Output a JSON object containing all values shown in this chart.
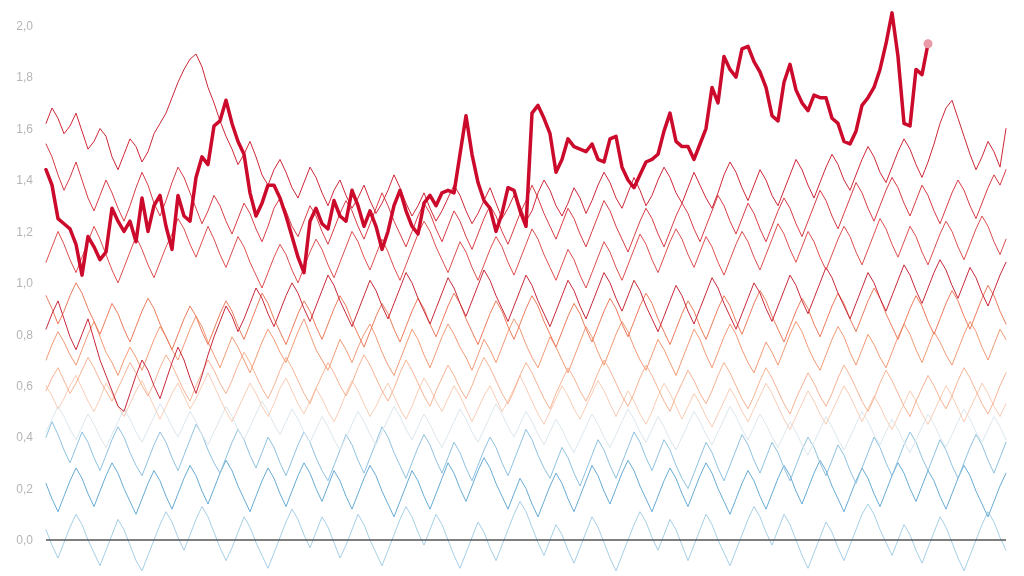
{
  "chart_data": {
    "type": "line",
    "tick_labels": "y",
    "categories": [
      null,
      null,
      null,
      null,
      null,
      null,
      null,
      null,
      null,
      null,
      null,
      null,
      null,
      null,
      null,
      null,
      null,
      null,
      null,
      null,
      null,
      null,
      null,
      null,
      null,
      null,
      null,
      null,
      null,
      null,
      null,
      null,
      null,
      null,
      null,
      null,
      null,
      null,
      null,
      null,
      null,
      null,
      null,
      null,
      null,
      null,
      null,
      null,
      null,
      null,
      null,
      null,
      null,
      null,
      null,
      null,
      null,
      null,
      null,
      null,
      null,
      null,
      null,
      null,
      null,
      null,
      null,
      null,
      null,
      null,
      null,
      null,
      null,
      null,
      null,
      null,
      null,
      null,
      null,
      null,
      null,
      null,
      null,
      null,
      null,
      null,
      null,
      null,
      null,
      null,
      null,
      null,
      null,
      null,
      null,
      null,
      null,
      null,
      null,
      null,
      null,
      null,
      null,
      null,
      null,
      null,
      null,
      null,
      null,
      null,
      null,
      null,
      null,
      null,
      null,
      null,
      null,
      null,
      null,
      null,
      null,
      null,
      null,
      null,
      null,
      null,
      null,
      null,
      null,
      null,
      null,
      null,
      null,
      null,
      null,
      null,
      null,
      null,
      null,
      null,
      null,
      null,
      null,
      null,
      null,
      null,
      null,
      null,
      null,
      null,
      null,
      null,
      null,
      null,
      null,
      null,
      null,
      null,
      null,
      null,
      null
    ],
    "ylim": [
      -0.14,
      2.1
    ],
    "yticks": [
      {
        "value": 0,
        "label": "0,0"
      },
      {
        "value": 0.2,
        "label": "0,2"
      },
      {
        "value": 0.4,
        "label": "0,4"
      },
      {
        "value": 0.6,
        "label": "0,6"
      },
      {
        "value": 0.8,
        "label": "0,8"
      },
      {
        "value": 1,
        "label": "1,0"
      },
      {
        "value": 1.2,
        "label": "1,2"
      },
      {
        "value": 1.4,
        "label": "1,4"
      },
      {
        "value": 1.6,
        "label": "1,6"
      },
      {
        "value": 1.8,
        "label": "1,8"
      },
      {
        "value": 2,
        "label": "2,0"
      }
    ],
    "ref_lines": [
      {
        "axis": "y",
        "value": 0,
        "color": "#555555"
      }
    ],
    "series": [
      {
        "color": "#a6cfe6",
        "values": [
          0.04,
          -0.02,
          -0.07,
          -0.01,
          0.05,
          0.1,
          0.06,
          0.0,
          -0.05,
          -0.1,
          -0.04,
          0.02,
          0.08,
          0.04,
          -0.02,
          -0.08,
          -0.12,
          -0.06,
          0.0,
          0.06,
          0.11,
          0.07,
          0.01,
          -0.04,
          0.02,
          0.08,
          0.13,
          0.09,
          0.03,
          -0.03,
          -0.08,
          -0.03,
          0.03,
          0.09,
          0.05,
          -0.01,
          -0.06,
          -0.11,
          -0.05,
          0.01,
          0.07,
          0.12,
          0.08,
          0.02,
          -0.03,
          0.03,
          0.09,
          0.05,
          -0.01,
          -0.07,
          -0.02,
          0.04,
          0.1,
          0.06,
          0.0,
          -0.05,
          -0.1,
          -0.04,
          0.02,
          0.08,
          0.13,
          0.09,
          0.03,
          -0.02,
          0.04,
          0.1,
          0.06,
          0.0,
          -0.06,
          -0.11,
          -0.05,
          0.01,
          0.07,
          0.03,
          -0.03,
          -0.08,
          -0.02,
          0.04,
          0.1,
          0.15,
          0.11,
          0.05,
          -0.01,
          -0.06,
          0.0,
          0.06,
          0.02,
          -0.04,
          -0.09,
          -0.03,
          0.03,
          0.09,
          0.05,
          -0.01,
          -0.07,
          -0.12,
          -0.06,
          0.0,
          0.06,
          0.11,
          0.07,
          0.01,
          -0.04,
          0.02,
          0.08,
          0.04,
          -0.02,
          -0.08,
          -0.02,
          0.04,
          0.1,
          0.06,
          0.0,
          -0.05,
          -0.1,
          -0.04,
          0.02,
          0.08,
          0.13,
          0.09,
          0.03,
          -0.02,
          0.04,
          0.1,
          0.06,
          0.0,
          -0.06,
          -0.11,
          -0.05,
          0.01,
          0.07,
          0.03,
          -0.03,
          -0.08,
          -0.02,
          0.04,
          0.1,
          0.14,
          0.1,
          0.04,
          -0.01,
          -0.06,
          0.0,
          0.06,
          0.02,
          -0.04,
          -0.09,
          -0.03,
          0.03,
          0.09,
          0.05,
          -0.01,
          -0.07,
          -0.12,
          -0.06,
          0.0,
          0.06,
          0.11,
          0.07,
          0.01,
          -0.04
        ]
      },
      {
        "color": "#67abd4",
        "values": [
          0.22,
          0.16,
          0.11,
          0.17,
          0.23,
          0.28,
          0.24,
          0.18,
          0.13,
          0.19,
          0.25,
          0.3,
          0.26,
          0.2,
          0.15,
          0.1,
          0.16,
          0.22,
          0.27,
          0.23,
          0.17,
          0.12,
          0.18,
          0.24,
          0.29,
          0.25,
          0.19,
          0.14,
          0.2,
          0.26,
          0.31,
          0.27,
          0.21,
          0.16,
          0.11,
          0.17,
          0.23,
          0.28,
          0.24,
          0.18,
          0.13,
          0.19,
          0.25,
          0.3,
          0.26,
          0.2,
          0.15,
          0.21,
          0.27,
          0.23,
          0.17,
          0.12,
          0.18,
          0.24,
          0.29,
          0.25,
          0.19,
          0.14,
          0.09,
          0.15,
          0.21,
          0.27,
          0.23,
          0.17,
          0.12,
          0.18,
          0.24,
          0.3,
          0.26,
          0.2,
          0.15,
          0.21,
          0.27,
          0.32,
          0.28,
          0.22,
          0.17,
          0.12,
          0.18,
          0.24,
          0.2,
          0.14,
          0.09,
          0.15,
          0.21,
          0.26,
          0.22,
          0.16,
          0.11,
          0.17,
          0.23,
          0.29,
          0.25,
          0.19,
          0.14,
          0.2,
          0.26,
          0.31,
          0.27,
          0.21,
          0.16,
          0.11,
          0.17,
          0.23,
          0.28,
          0.24,
          0.18,
          0.13,
          0.19,
          0.25,
          0.3,
          0.26,
          0.2,
          0.15,
          0.1,
          0.16,
          0.22,
          0.27,
          0.23,
          0.17,
          0.12,
          0.18,
          0.24,
          0.29,
          0.25,
          0.19,
          0.14,
          0.2,
          0.26,
          0.31,
          0.27,
          0.21,
          0.16,
          0.11,
          0.17,
          0.23,
          0.28,
          0.24,
          0.18,
          0.13,
          0.19,
          0.25,
          0.3,
          0.26,
          0.2,
          0.15,
          0.21,
          0.27,
          0.23,
          0.17,
          0.12,
          0.18,
          0.24,
          0.29,
          0.25,
          0.19,
          0.14,
          0.09,
          0.15,
          0.21,
          0.26
        ]
      },
      {
        "color": "#8fc2df",
        "values": [
          0.4,
          0.46,
          0.41,
          0.35,
          0.3,
          0.36,
          0.42,
          0.38,
          0.32,
          0.27,
          0.33,
          0.39,
          0.44,
          0.4,
          0.34,
          0.29,
          0.25,
          0.31,
          0.37,
          0.42,
          0.38,
          0.32,
          0.27,
          0.33,
          0.39,
          0.45,
          0.41,
          0.35,
          0.3,
          0.26,
          0.32,
          0.38,
          0.43,
          0.39,
          0.33,
          0.28,
          0.34,
          0.4,
          0.36,
          0.3,
          0.25,
          0.31,
          0.37,
          0.42,
          0.38,
          0.32,
          0.27,
          0.23,
          0.29,
          0.35,
          0.41,
          0.37,
          0.31,
          0.26,
          0.32,
          0.38,
          0.44,
          0.4,
          0.34,
          0.29,
          0.24,
          0.3,
          0.36,
          0.41,
          0.37,
          0.31,
          0.26,
          0.32,
          0.38,
          0.34,
          0.28,
          0.23,
          0.29,
          0.35,
          0.4,
          0.36,
          0.3,
          0.25,
          0.31,
          0.37,
          0.43,
          0.39,
          0.33,
          0.28,
          0.24,
          0.3,
          0.36,
          0.32,
          0.26,
          0.21,
          0.27,
          0.33,
          0.39,
          0.35,
          0.29,
          0.24,
          0.3,
          0.36,
          0.42,
          0.38,
          0.32,
          0.27,
          0.33,
          0.39,
          0.35,
          0.29,
          0.24,
          0.2,
          0.26,
          0.32,
          0.38,
          0.34,
          0.28,
          0.23,
          0.29,
          0.35,
          0.41,
          0.37,
          0.31,
          0.26,
          0.32,
          0.38,
          0.34,
          0.28,
          0.23,
          0.29,
          0.35,
          0.4,
          0.36,
          0.3,
          0.25,
          0.31,
          0.37,
          0.33,
          0.27,
          0.22,
          0.28,
          0.34,
          0.4,
          0.36,
          0.3,
          0.25,
          0.31,
          0.37,
          0.42,
          0.38,
          0.32,
          0.27,
          0.33,
          0.39,
          0.35,
          0.29,
          0.24,
          0.3,
          0.36,
          0.41,
          0.37,
          0.31,
          0.26,
          0.32,
          0.38
        ]
      },
      {
        "color": "#dce7ee",
        "values": [
          0.42,
          0.47,
          0.52,
          0.48,
          0.43,
          0.39,
          0.44,
          0.49,
          0.45,
          0.4,
          0.36,
          0.41,
          0.46,
          0.51,
          0.47,
          0.42,
          0.38,
          0.43,
          0.48,
          0.53,
          0.49,
          0.44,
          0.4,
          0.45,
          0.5,
          0.46,
          0.41,
          0.37,
          0.42,
          0.47,
          0.52,
          0.48,
          0.43,
          0.39,
          0.44,
          0.49,
          0.54,
          0.5,
          0.45,
          0.41,
          0.46,
          0.51,
          0.47,
          0.42,
          0.38,
          0.43,
          0.48,
          0.44,
          0.39,
          0.35,
          0.4,
          0.45,
          0.5,
          0.46,
          0.41,
          0.37,
          0.42,
          0.47,
          0.52,
          0.48,
          0.43,
          0.39,
          0.44,
          0.49,
          0.45,
          0.4,
          0.36,
          0.41,
          0.46,
          0.51,
          0.47,
          0.42,
          0.38,
          0.43,
          0.48,
          0.53,
          0.49,
          0.44,
          0.4,
          0.45,
          0.5,
          0.46,
          0.41,
          0.37,
          0.42,
          0.47,
          0.43,
          0.38,
          0.34,
          0.39,
          0.44,
          0.49,
          0.45,
          0.4,
          0.36,
          0.41,
          0.46,
          0.51,
          0.47,
          0.42,
          0.38,
          0.43,
          0.48,
          0.44,
          0.39,
          0.35,
          0.4,
          0.45,
          0.5,
          0.46,
          0.41,
          0.37,
          0.42,
          0.47,
          0.52,
          0.48,
          0.43,
          0.39,
          0.44,
          0.49,
          0.45,
          0.4,
          0.36,
          0.41,
          0.46,
          0.42,
          0.37,
          0.33,
          0.38,
          0.43,
          0.48,
          0.44,
          0.39,
          0.35,
          0.4,
          0.45,
          0.5,
          0.46,
          0.41,
          0.37,
          0.42,
          0.47,
          0.43,
          0.38,
          0.34,
          0.39,
          0.44,
          0.49,
          0.45,
          0.4,
          0.36,
          0.41,
          0.46,
          0.51,
          0.47,
          0.42,
          0.38,
          0.43,
          0.48,
          0.44,
          0.39
        ]
      },
      {
        "color": "#f9cdb5",
        "values": [
          0.6,
          0.56,
          0.51,
          0.55,
          0.6,
          0.64,
          0.59,
          0.54,
          0.5,
          0.55,
          0.61,
          0.57,
          0.52,
          0.48,
          0.53,
          0.58,
          0.62,
          0.57,
          0.52,
          0.47,
          0.52,
          0.57,
          0.61,
          0.56,
          0.51,
          0.55,
          0.6,
          0.65,
          0.6,
          0.55,
          0.5,
          0.46,
          0.51,
          0.56,
          0.61,
          0.57,
          0.52,
          0.48,
          0.53,
          0.59,
          0.63,
          0.58,
          0.53,
          0.49,
          0.54,
          0.59,
          0.55,
          0.5,
          0.46,
          0.51,
          0.57,
          0.62,
          0.58,
          0.53,
          0.48,
          0.52,
          0.57,
          0.61,
          0.56,
          0.51,
          0.47,
          0.52,
          0.58,
          0.63,
          0.59,
          0.54,
          0.5,
          0.55,
          0.6,
          0.56,
          0.51,
          0.46,
          0.51,
          0.56,
          0.6,
          0.55,
          0.5,
          0.54,
          0.59,
          0.64,
          0.59,
          0.54,
          0.49,
          0.45,
          0.5,
          0.55,
          0.6,
          0.56,
          0.51,
          0.47,
          0.52,
          0.57,
          0.62,
          0.58,
          0.53,
          0.48,
          0.53,
          0.58,
          0.54,
          0.49,
          0.45,
          0.5,
          0.56,
          0.61,
          0.57,
          0.52,
          0.47,
          0.52,
          0.57,
          0.53,
          0.48,
          0.44,
          0.49,
          0.54,
          0.59,
          0.55,
          0.5,
          0.46,
          0.51,
          0.56,
          0.61,
          0.57,
          0.52,
          0.47,
          0.43,
          0.48,
          0.53,
          0.58,
          0.54,
          0.49,
          0.45,
          0.5,
          0.55,
          0.6,
          0.56,
          0.51,
          0.46,
          0.51,
          0.56,
          0.52,
          0.47,
          0.43,
          0.48,
          0.53,
          0.58,
          0.54,
          0.49,
          0.45,
          0.5,
          0.55,
          0.6,
          0.56,
          0.51,
          0.46,
          0.51,
          0.56,
          0.61,
          0.57,
          0.52,
          0.48,
          0.53
        ]
      },
      {
        "color": "#f6b393",
        "values": [
          0.58,
          0.63,
          0.67,
          0.62,
          0.57,
          0.61,
          0.66,
          0.71,
          0.67,
          0.62,
          0.58,
          0.54,
          0.59,
          0.64,
          0.69,
          0.65,
          0.6,
          0.56,
          0.61,
          0.67,
          0.72,
          0.68,
          0.63,
          0.58,
          0.54,
          0.6,
          0.65,
          0.7,
          0.66,
          0.61,
          0.57,
          0.62,
          0.68,
          0.73,
          0.69,
          0.64,
          0.59,
          0.55,
          0.6,
          0.66,
          0.71,
          0.67,
          0.62,
          0.57,
          0.53,
          0.59,
          0.64,
          0.69,
          0.65,
          0.6,
          0.56,
          0.61,
          0.67,
          0.72,
          0.68,
          0.63,
          0.58,
          0.54,
          0.59,
          0.65,
          0.7,
          0.66,
          0.61,
          0.56,
          0.52,
          0.58,
          0.63,
          0.68,
          0.64,
          0.59,
          0.55,
          0.6,
          0.66,
          0.71,
          0.67,
          0.62,
          0.57,
          0.53,
          0.58,
          0.64,
          0.69,
          0.65,
          0.6,
          0.55,
          0.51,
          0.57,
          0.62,
          0.67,
          0.63,
          0.58,
          0.54,
          0.59,
          0.65,
          0.7,
          0.66,
          0.61,
          0.56,
          0.52,
          0.57,
          0.63,
          0.68,
          0.64,
          0.59,
          0.54,
          0.5,
          0.56,
          0.61,
          0.66,
          0.62,
          0.57,
          0.53,
          0.58,
          0.64,
          0.69,
          0.65,
          0.6,
          0.55,
          0.51,
          0.56,
          0.62,
          0.67,
          0.63,
          0.58,
          0.53,
          0.49,
          0.55,
          0.6,
          0.65,
          0.61,
          0.56,
          0.52,
          0.57,
          0.63,
          0.68,
          0.64,
          0.59,
          0.54,
          0.5,
          0.55,
          0.61,
          0.66,
          0.62,
          0.57,
          0.52,
          0.48,
          0.54,
          0.59,
          0.64,
          0.6,
          0.55,
          0.51,
          0.56,
          0.62,
          0.67,
          0.63,
          0.58,
          0.53,
          0.49,
          0.54,
          0.6,
          0.65
        ]
      },
      {
        "color": "#f29a74",
        "values": [
          0.7,
          0.76,
          0.81,
          0.77,
          0.72,
          0.68,
          0.74,
          0.8,
          0.85,
          0.79,
          0.73,
          0.69,
          0.64,
          0.7,
          0.75,
          0.71,
          0.66,
          0.72,
          0.78,
          0.83,
          0.79,
          0.74,
          0.7,
          0.76,
          0.82,
          0.87,
          0.83,
          0.77,
          0.72,
          0.67,
          0.73,
          0.79,
          0.75,
          0.7,
          0.65,
          0.71,
          0.77,
          0.82,
          0.78,
          0.73,
          0.69,
          0.75,
          0.81,
          0.86,
          0.8,
          0.74,
          0.7,
          0.66,
          0.72,
          0.78,
          0.74,
          0.69,
          0.75,
          0.8,
          0.84,
          0.79,
          0.73,
          0.68,
          0.64,
          0.7,
          0.76,
          0.82,
          0.78,
          0.72,
          0.67,
          0.73,
          0.79,
          0.84,
          0.8,
          0.75,
          0.71,
          0.66,
          0.72,
          0.78,
          0.74,
          0.69,
          0.75,
          0.81,
          0.86,
          0.82,
          0.76,
          0.71,
          0.67,
          0.73,
          0.79,
          0.75,
          0.7,
          0.65,
          0.71,
          0.77,
          0.83,
          0.79,
          0.73,
          0.68,
          0.74,
          0.8,
          0.85,
          0.81,
          0.75,
          0.7,
          0.66,
          0.72,
          0.78,
          0.74,
          0.69,
          0.64,
          0.7,
          0.76,
          0.82,
          0.78,
          0.72,
          0.67,
          0.73,
          0.79,
          0.84,
          0.8,
          0.74,
          0.69,
          0.65,
          0.71,
          0.77,
          0.73,
          0.68,
          0.74,
          0.8,
          0.85,
          0.81,
          0.75,
          0.7,
          0.66,
          0.72,
          0.78,
          0.83,
          0.79,
          0.73,
          0.68,
          0.74,
          0.8,
          0.76,
          0.71,
          0.67,
          0.73,
          0.79,
          0.84,
          0.8,
          0.74,
          0.69,
          0.75,
          0.81,
          0.77,
          0.72,
          0.68,
          0.74,
          0.8,
          0.85,
          0.81,
          0.75,
          0.7,
          0.76,
          0.82,
          0.78
        ]
      },
      {
        "color": "#ec7b5c",
        "values": [
          0.95,
          0.9,
          0.84,
          0.89,
          0.95,
          1.0,
          0.96,
          0.9,
          0.85,
          0.8,
          0.86,
          0.92,
          0.88,
          0.82,
          0.77,
          0.83,
          0.89,
          0.94,
          0.9,
          0.84,
          0.79,
          0.74,
          0.8,
          0.86,
          0.91,
          0.87,
          0.81,
          0.76,
          0.82,
          0.88,
          0.93,
          0.89,
          0.83,
          0.78,
          0.84,
          0.9,
          0.96,
          0.92,
          0.86,
          0.81,
          0.76,
          0.82,
          0.88,
          0.93,
          0.89,
          0.83,
          0.78,
          0.84,
          0.9,
          0.95,
          0.91,
          0.85,
          0.8,
          0.75,
          0.81,
          0.87,
          0.92,
          0.88,
          0.82,
          0.77,
          0.83,
          0.89,
          0.94,
          0.9,
          0.84,
          0.79,
          0.85,
          0.91,
          0.96,
          0.92,
          0.86,
          0.81,
          0.76,
          0.82,
          0.88,
          0.93,
          0.89,
          0.83,
          0.78,
          0.84,
          0.9,
          0.95,
          0.91,
          0.85,
          0.8,
          0.75,
          0.81,
          0.87,
          0.92,
          0.88,
          0.82,
          0.77,
          0.83,
          0.89,
          0.94,
          0.9,
          0.84,
          0.79,
          0.85,
          0.91,
          0.96,
          0.92,
          0.86,
          0.81,
          0.76,
          0.82,
          0.88,
          0.93,
          0.89,
          0.83,
          0.78,
          0.84,
          0.9,
          0.95,
          0.91,
          0.85,
          0.8,
          0.86,
          0.92,
          0.97,
          0.93,
          0.87,
          0.82,
          0.77,
          0.83,
          0.89,
          0.94,
          0.9,
          0.84,
          0.79,
          0.85,
          0.91,
          0.96,
          0.92,
          0.86,
          0.81,
          0.87,
          0.93,
          0.98,
          0.94,
          0.88,
          0.83,
          0.78,
          0.84,
          0.9,
          0.95,
          0.91,
          0.85,
          0.8,
          0.86,
          0.92,
          0.97,
          0.93,
          0.87,
          0.82,
          0.88,
          0.94,
          0.99,
          0.95,
          0.89,
          0.84
        ]
      },
      {
        "color": "#c8283a",
        "values": [
          0.82,
          0.88,
          0.93,
          0.86,
          0.79,
          0.74,
          0.8,
          0.86,
          0.78,
          0.7,
          0.64,
          0.58,
          0.52,
          0.5,
          0.57,
          0.64,
          0.7,
          0.66,
          0.6,
          0.55,
          0.62,
          0.69,
          0.75,
          0.7,
          0.63,
          0.57,
          0.64,
          0.72,
          0.79,
          0.85,
          0.91,
          0.87,
          0.81,
          0.86,
          0.92,
          0.98,
          0.94,
          0.88,
          0.83,
          0.89,
          0.95,
          1.0,
          0.96,
          0.9,
          0.85,
          0.91,
          0.97,
          1.03,
          0.99,
          0.93,
          0.88,
          0.83,
          0.89,
          0.95,
          1.01,
          0.97,
          0.91,
          0.86,
          0.92,
          0.98,
          1.04,
          1.0,
          0.94,
          0.89,
          0.84,
          0.9,
          0.96,
          1.02,
          0.98,
          0.92,
          0.87,
          0.93,
          0.99,
          1.05,
          1.01,
          0.95,
          0.9,
          0.85,
          0.91,
          0.97,
          1.03,
          0.99,
          0.93,
          0.88,
          0.83,
          0.89,
          0.95,
          1.01,
          0.97,
          0.91,
          0.86,
          0.92,
          0.98,
          1.04,
          1.0,
          0.94,
          0.89,
          0.95,
          1.01,
          0.97,
          0.91,
          0.86,
          0.81,
          0.87,
          0.93,
          0.99,
          0.95,
          0.89,
          0.84,
          0.9,
          0.96,
          1.02,
          0.98,
          0.92,
          0.87,
          0.82,
          0.88,
          0.94,
          1.0,
          0.96,
          0.9,
          0.85,
          0.91,
          0.97,
          1.03,
          0.99,
          0.93,
          0.88,
          0.94,
          1.0,
          1.06,
          1.02,
          0.96,
          0.91,
          0.86,
          0.92,
          0.98,
          1.04,
          1.0,
          0.94,
          0.89,
          0.95,
          1.01,
          1.07,
          1.03,
          0.97,
          0.92,
          0.98,
          1.04,
          1.09,
          1.05,
          0.99,
          0.94,
          1.0,
          1.06,
          1.02,
          0.96,
          0.91,
          0.97,
          1.03,
          1.08
        ]
      },
      {
        "color": "#de4d4f",
        "values": [
          1.08,
          1.14,
          1.2,
          1.15,
          1.09,
          1.04,
          1.1,
          1.16,
          1.22,
          1.17,
          1.11,
          1.05,
          1.0,
          1.06,
          1.12,
          1.18,
          1.13,
          1.07,
          1.02,
          1.08,
          1.14,
          1.19,
          1.25,
          1.21,
          1.15,
          1.1,
          1.16,
          1.22,
          1.17,
          1.11,
          1.06,
          1.12,
          1.18,
          1.14,
          1.08,
          1.03,
          0.98,
          1.04,
          1.1,
          1.15,
          1.11,
          1.05,
          1.0,
          1.06,
          1.12,
          1.17,
          1.13,
          1.07,
          1.02,
          1.08,
          1.14,
          1.2,
          1.16,
          1.1,
          1.05,
          1.11,
          1.17,
          1.12,
          1.06,
          1.01,
          1.07,
          1.13,
          1.19,
          1.24,
          1.2,
          1.14,
          1.09,
          1.04,
          1.1,
          1.16,
          1.12,
          1.06,
          1.01,
          1.07,
          1.13,
          1.18,
          1.14,
          1.08,
          1.03,
          1.09,
          1.15,
          1.21,
          1.17,
          1.11,
          1.06,
          1.01,
          1.07,
          1.13,
          1.09,
          1.03,
          0.98,
          1.04,
          1.1,
          1.16,
          1.12,
          1.06,
          1.01,
          1.07,
          1.13,
          1.19,
          1.15,
          1.09,
          1.04,
          1.1,
          1.16,
          1.21,
          1.17,
          1.11,
          1.06,
          1.12,
          1.18,
          1.14,
          1.08,
          1.03,
          1.09,
          1.15,
          1.2,
          1.16,
          1.1,
          1.05,
          1.11,
          1.17,
          1.23,
          1.19,
          1.13,
          1.08,
          1.14,
          1.2,
          1.16,
          1.1,
          1.05,
          1.11,
          1.17,
          1.22,
          1.18,
          1.12,
          1.07,
          1.13,
          1.19,
          1.25,
          1.21,
          1.15,
          1.1,
          1.16,
          1.22,
          1.18,
          1.12,
          1.07,
          1.13,
          1.19,
          1.24,
          1.2,
          1.14,
          1.09,
          1.15,
          1.21,
          1.26,
          1.22,
          1.16,
          1.11,
          1.17
        ]
      },
      {
        "color": "#d83b45",
        "values": [
          1.54,
          1.49,
          1.42,
          1.36,
          1.41,
          1.47,
          1.4,
          1.33,
          1.28,
          1.34,
          1.4,
          1.35,
          1.29,
          1.24,
          1.3,
          1.37,
          1.43,
          1.38,
          1.31,
          1.26,
          1.32,
          1.39,
          1.45,
          1.41,
          1.35,
          1.29,
          1.23,
          1.28,
          1.34,
          1.3,
          1.24,
          1.19,
          1.25,
          1.31,
          1.27,
          1.21,
          1.16,
          1.22,
          1.29,
          1.33,
          1.28,
          1.22,
          1.18,
          1.24,
          1.3,
          1.26,
          1.2,
          1.15,
          1.21,
          1.27,
          1.32,
          1.28,
          1.22,
          1.17,
          1.23,
          1.29,
          1.35,
          1.3,
          1.24,
          1.19,
          1.14,
          1.2,
          1.26,
          1.31,
          1.27,
          1.21,
          1.16,
          1.22,
          1.28,
          1.24,
          1.18,
          1.13,
          1.19,
          1.25,
          1.3,
          1.26,
          1.2,
          1.15,
          1.21,
          1.27,
          1.32,
          1.38,
          1.33,
          1.27,
          1.22,
          1.17,
          1.23,
          1.29,
          1.25,
          1.19,
          1.14,
          1.2,
          1.26,
          1.32,
          1.28,
          1.22,
          1.17,
          1.12,
          1.18,
          1.24,
          1.29,
          1.25,
          1.19,
          1.14,
          1.2,
          1.26,
          1.31,
          1.27,
          1.21,
          1.16,
          1.22,
          1.28,
          1.34,
          1.3,
          1.24,
          1.19,
          1.25,
          1.31,
          1.27,
          1.21,
          1.16,
          1.22,
          1.28,
          1.33,
          1.29,
          1.23,
          1.18,
          1.24,
          1.3,
          1.36,
          1.32,
          1.26,
          1.21,
          1.27,
          1.33,
          1.39,
          1.35,
          1.29,
          1.24,
          1.3,
          1.36,
          1.41,
          1.37,
          1.31,
          1.26,
          1.32,
          1.38,
          1.34,
          1.28,
          1.23,
          1.29,
          1.35,
          1.4,
          1.36,
          1.3,
          1.25,
          1.31,
          1.37,
          1.42,
          1.38,
          1.44
        ]
      },
      {
        "color": "#cf2637",
        "values": [
          1.62,
          1.68,
          1.64,
          1.58,
          1.61,
          1.66,
          1.59,
          1.52,
          1.55,
          1.6,
          1.57,
          1.49,
          1.44,
          1.5,
          1.56,
          1.53,
          1.47,
          1.51,
          1.58,
          1.62,
          1.66,
          1.72,
          1.78,
          1.83,
          1.87,
          1.89,
          1.84,
          1.76,
          1.7,
          1.63,
          1.57,
          1.52,
          1.46,
          1.5,
          1.55,
          1.49,
          1.42,
          1.38,
          1.44,
          1.48,
          1.43,
          1.37,
          1.33,
          1.39,
          1.45,
          1.41,
          1.35,
          1.3,
          1.36,
          1.4,
          1.34,
          1.29,
          1.33,
          1.38,
          1.32,
          1.27,
          1.31,
          1.36,
          1.42,
          1.37,
          1.31,
          1.26,
          1.3,
          1.35,
          1.29,
          1.24,
          1.28,
          1.33,
          1.38,
          1.34,
          1.28,
          1.23,
          1.27,
          1.32,
          1.37,
          1.31,
          1.25,
          1.29,
          1.34,
          1.3,
          1.24,
          1.28,
          1.35,
          1.4,
          1.36,
          1.3,
          1.26,
          1.31,
          1.37,
          1.33,
          1.27,
          1.32,
          1.38,
          1.43,
          1.39,
          1.33,
          1.29,
          1.35,
          1.41,
          1.36,
          1.3,
          1.34,
          1.4,
          1.45,
          1.41,
          1.35,
          1.31,
          1.37,
          1.43,
          1.38,
          1.33,
          1.29,
          1.35,
          1.42,
          1.47,
          1.43,
          1.37,
          1.32,
          1.38,
          1.44,
          1.4,
          1.34,
          1.3,
          1.36,
          1.42,
          1.48,
          1.44,
          1.38,
          1.33,
          1.39,
          1.45,
          1.5,
          1.46,
          1.4,
          1.36,
          1.42,
          1.48,
          1.53,
          1.49,
          1.43,
          1.39,
          1.45,
          1.51,
          1.56,
          1.52,
          1.46,
          1.41,
          1.47,
          1.54,
          1.62,
          1.68,
          1.71,
          1.64,
          1.57,
          1.5,
          1.44,
          1.49,
          1.55,
          1.51,
          1.45,
          1.6
        ]
      },
      {
        "color": "#cb0a2c",
        "values": [
          1.44,
          1.38,
          1.25,
          1.23,
          1.21,
          1.15,
          1.03,
          1.18,
          1.14,
          1.09,
          1.12,
          1.29,
          1.24,
          1.2,
          1.24,
          1.16,
          1.33,
          1.2,
          1.3,
          1.34,
          1.22,
          1.13,
          1.34,
          1.26,
          1.24,
          1.41,
          1.49,
          1.46,
          1.61,
          1.63,
          1.71,
          1.62,
          1.55,
          1.5,
          1.35,
          1.26,
          1.31,
          1.38,
          1.38,
          1.33,
          1.26,
          1.18,
          1.1,
          1.04,
          1.24,
          1.29,
          1.23,
          1.21,
          1.32,
          1.26,
          1.24,
          1.36,
          1.3,
          1.22,
          1.28,
          1.22,
          1.13,
          1.2,
          1.3,
          1.36,
          1.28,
          1.22,
          1.19,
          1.31,
          1.34,
          1.3,
          1.35,
          1.36,
          1.35,
          1.5,
          1.65,
          1.5,
          1.39,
          1.32,
          1.29,
          1.2,
          1.27,
          1.37,
          1.36,
          1.28,
          1.22,
          1.66,
          1.69,
          1.64,
          1.58,
          1.43,
          1.48,
          1.56,
          1.53,
          1.52,
          1.51,
          1.54,
          1.48,
          1.47,
          1.56,
          1.57,
          1.45,
          1.4,
          1.37,
          1.42,
          1.47,
          1.48,
          1.5,
          1.59,
          1.66,
          1.55,
          1.53,
          1.53,
          1.48,
          1.54,
          1.6,
          1.76,
          1.7,
          1.88,
          1.83,
          1.8,
          1.91,
          1.92,
          1.86,
          1.82,
          1.76,
          1.65,
          1.63,
          1.78,
          1.85,
          1.75,
          1.7,
          1.67,
          1.73,
          1.72,
          1.72,
          1.64,
          1.62,
          1.55,
          1.54,
          1.59,
          1.69,
          1.72,
          1.76,
          1.83,
          1.93,
          2.05,
          1.88,
          1.62,
          1.61,
          1.83,
          1.81,
          1.93,
          null,
          null,
          null,
          null,
          null,
          null,
          null,
          null,
          null,
          null,
          null,
          null,
          null
        ]
      },
      {
        "type": "scatter",
        "marker": "circle",
        "color": "#e99aa6",
        "values": [
          null,
          null,
          null,
          null,
          null,
          null,
          null,
          null,
          null,
          null,
          null,
          null,
          null,
          null,
          null,
          null,
          null,
          null,
          null,
          null,
          null,
          null,
          null,
          null,
          null,
          null,
          null,
          null,
          null,
          null,
          null,
          null,
          null,
          null,
          null,
          null,
          null,
          null,
          null,
          null,
          null,
          null,
          null,
          null,
          null,
          null,
          null,
          null,
          null,
          null,
          null,
          null,
          null,
          null,
          null,
          null,
          null,
          null,
          null,
          null,
          null,
          null,
          null,
          null,
          null,
          null,
          null,
          null,
          null,
          null,
          null,
          null,
          null,
          null,
          null,
          null,
          null,
          null,
          null,
          null,
          null,
          null,
          null,
          null,
          null,
          null,
          null,
          null,
          null,
          null,
          null,
          null,
          null,
          null,
          null,
          null,
          null,
          null,
          null,
          null,
          null,
          null,
          null,
          null,
          null,
          null,
          null,
          null,
          null,
          null,
          null,
          null,
          null,
          null,
          null,
          null,
          null,
          null,
          null,
          null,
          null,
          null,
          null,
          null,
          null,
          null,
          null,
          null,
          null,
          null,
          null,
          null,
          null,
          null,
          null,
          null,
          null,
          null,
          null,
          null,
          null,
          null,
          null,
          null,
          null,
          null,
          null,
          1.93,
          null,
          null,
          null,
          null,
          null,
          null,
          null,
          null,
          null,
          null,
          null,
          null,
          null
        ]
      }
    ]
  }
}
